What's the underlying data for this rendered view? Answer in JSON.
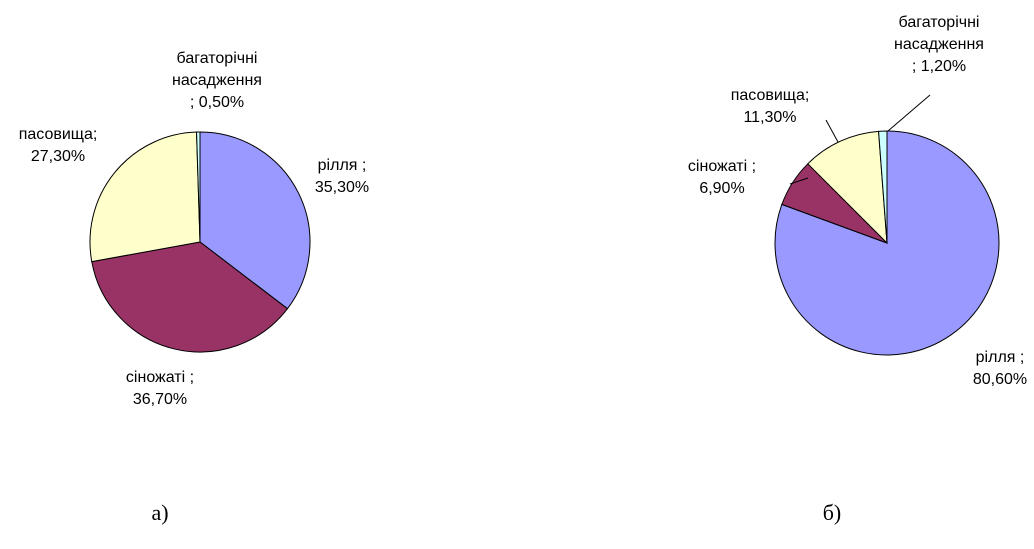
{
  "chart_data": [
    {
      "type": "pie",
      "caption": "а)",
      "slices": [
        {
          "label_lines": [
            "рілля ;",
            "35,30%"
          ],
          "value": 35.3,
          "color": "#9999ff"
        },
        {
          "label_lines": [
            "сіножаті ;",
            "36,70%"
          ],
          "value": 36.7,
          "color": "#993366"
        },
        {
          "label_lines": [
            "пасовища;",
            "27,30%"
          ],
          "value": 27.3,
          "color": "#ffffcc"
        },
        {
          "label_lines": [
            "багаторічні",
            "насадження",
            "; 0,50%"
          ],
          "value": 0.5,
          "color": "#ccffff"
        }
      ]
    },
    {
      "type": "pie",
      "caption": "б)",
      "slices": [
        {
          "label_lines": [
            "рілля ;",
            "80,60%"
          ],
          "value": 80.6,
          "color": "#9999ff"
        },
        {
          "label_lines": [
            "сіножаті ;",
            "6,90%"
          ],
          "value": 6.9,
          "color": "#993366"
        },
        {
          "label_lines": [
            "пасовища;",
            "11,30%"
          ],
          "value": 11.3,
          "color": "#ffffcc"
        },
        {
          "label_lines": [
            "багаторічні",
            "насадження",
            "; 1,20%"
          ],
          "value": 1.2,
          "color": "#ccffff"
        }
      ]
    }
  ]
}
